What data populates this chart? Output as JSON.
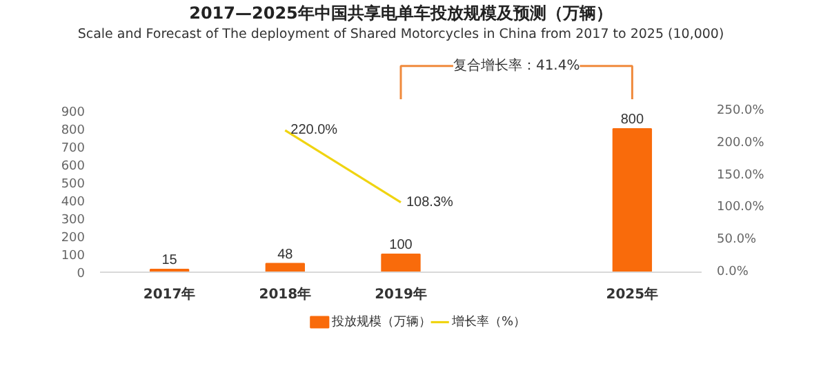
{
  "chart_data": {
    "type": "bar",
    "title": "2017—2025年中国共享电单车投放规模及预测（万辆）",
    "subtitle": "Scale and Forecast of The deployment of Shared Motorcycles in China from 2017 to 2025 (10,000)",
    "annotations": [
      "复合增长率：41.4%"
    ],
    "categories": [
      "2017年",
      "2018年",
      "2019年",
      null,
      "2025年"
    ],
    "series": [
      {
        "name": "投放规模（万辆）",
        "color": "#f96b0b",
        "values": [
          15,
          48,
          100,
          null,
          800
        ]
      },
      {
        "name": "增长率（%）",
        "type": "line",
        "axis": "y2",
        "color": "#f0d411",
        "values": [
          null,
          220.0,
          108.3,
          null,
          null
        ],
        "value_labels": [
          null,
          "220.0%",
          "108.3%",
          null,
          null
        ]
      }
    ],
    "data_labels": true,
    "ylim": [
      0,
      900
    ],
    "yticks": [
      0,
      100,
      200,
      300,
      400,
      500,
      600,
      700,
      800,
      900
    ],
    "y2lim": [
      0,
      250
    ],
    "y2ticks": [
      {
        "value": 0,
        "label": "0.0%"
      },
      {
        "value": 50,
        "label": "50.0%"
      },
      {
        "value": 100,
        "label": "100.0%"
      },
      {
        "value": 150,
        "label": "150.0%"
      },
      {
        "value": 200,
        "label": "200.0%"
      },
      {
        "value": 250,
        "label": "250.0%"
      }
    ],
    "grid": false,
    "legend": "bottom",
    "marker": "none",
    "line_style": "solid"
  }
}
